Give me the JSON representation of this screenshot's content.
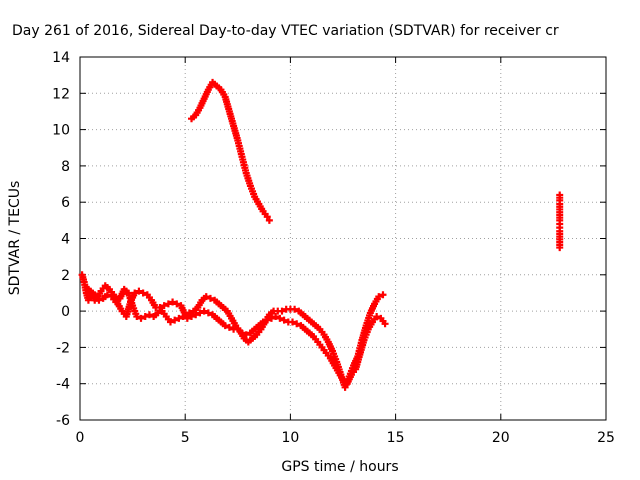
{
  "chart_data": {
    "type": "scatter",
    "title": "Day 261 of 2016, Sidereal Day-to-day VTEC variation (SDTVAR) for receiver cr",
    "xlabel": "GPS time / hours",
    "ylabel": "SDTVAR / TECUs",
    "xlim": [
      0,
      25
    ],
    "ylim": [
      -6,
      14
    ],
    "x_ticks": [
      0,
      5,
      10,
      15,
      20,
      25
    ],
    "y_ticks": [
      -6,
      -4,
      -2,
      0,
      2,
      4,
      6,
      8,
      10,
      12,
      14
    ],
    "x_tick_labels": [
      "0",
      "5",
      "10",
      "15",
      "20",
      "25"
    ],
    "y_tick_labels": [
      "-6",
      "-4",
      "-2",
      "0",
      "2",
      "4",
      "6",
      "8",
      "10",
      "12",
      "14"
    ],
    "grid": true,
    "series_color": "#ff0000",
    "series": [
      {
        "points": [
          [
            0.1,
            2.0
          ],
          [
            0.2,
            1.6
          ],
          [
            0.3,
            1.0
          ],
          [
            0.4,
            0.6
          ],
          [
            0.5,
            0.8
          ],
          [
            0.6,
            1.0
          ],
          [
            0.7,
            0.9
          ],
          [
            0.8,
            0.7
          ],
          [
            1.0,
            1.1
          ],
          [
            1.2,
            1.4
          ],
          [
            1.4,
            1.2
          ],
          [
            1.6,
            0.9
          ],
          [
            1.8,
            0.4
          ],
          [
            2.0,
            0.0
          ],
          [
            2.2,
            -0.3
          ],
          [
            2.4,
            0.5
          ],
          [
            2.6,
            1.0
          ],
          [
            2.8,
            1.1
          ],
          [
            3.0,
            1.0
          ],
          [
            3.2,
            0.9
          ],
          [
            3.4,
            0.6
          ],
          [
            3.6,
            0.2
          ],
          [
            3.8,
            0.2
          ],
          [
            4.0,
            0.3
          ],
          [
            4.2,
            0.4
          ],
          [
            4.4,
            0.5
          ],
          [
            4.6,
            0.4
          ],
          [
            4.8,
            0.3
          ],
          [
            5.0,
            -0.2
          ],
          [
            5.2,
            -0.1
          ],
          [
            5.4,
            0.0
          ],
          [
            5.6,
            0.2
          ],
          [
            5.8,
            0.6
          ],
          [
            6.0,
            0.8
          ],
          [
            6.2,
            0.7
          ],
          [
            6.4,
            0.6
          ],
          [
            6.6,
            0.4
          ],
          [
            6.8,
            0.2
          ],
          [
            7.0,
            0.0
          ],
          [
            7.2,
            -0.4
          ],
          [
            7.4,
            -0.8
          ],
          [
            7.6,
            -1.1
          ],
          [
            7.8,
            -1.5
          ],
          [
            8.0,
            -1.7
          ],
          [
            8.2,
            -1.5
          ],
          [
            8.4,
            -1.3
          ],
          [
            8.6,
            -1.0
          ],
          [
            8.8,
            -0.6
          ],
          [
            9.0,
            -0.2
          ],
          [
            9.2,
            0.0
          ],
          [
            9.4,
            0.0
          ],
          [
            9.6,
            0.0
          ],
          [
            9.8,
            0.1
          ],
          [
            10.0,
            0.1
          ],
          [
            10.2,
            0.1
          ],
          [
            10.4,
            0.0
          ],
          [
            10.6,
            -0.2
          ],
          [
            10.8,
            -0.4
          ],
          [
            11.0,
            -0.6
          ],
          [
            11.2,
            -0.8
          ],
          [
            11.4,
            -1.0
          ],
          [
            11.6,
            -1.3
          ],
          [
            11.8,
            -1.7
          ],
          [
            12.0,
            -2.2
          ],
          [
            12.2,
            -2.8
          ],
          [
            12.4,
            -3.5
          ],
          [
            12.6,
            -4.2
          ],
          [
            12.8,
            -3.6
          ],
          [
            13.0,
            -3.0
          ],
          [
            13.2,
            -2.5
          ],
          [
            13.4,
            -1.6
          ],
          [
            13.6,
            -0.8
          ],
          [
            13.8,
            -0.1
          ],
          [
            14.0,
            0.4
          ],
          [
            14.2,
            0.8
          ],
          [
            14.4,
            0.9
          ]
        ]
      },
      {
        "points": [
          [
            0.3,
            1.3
          ],
          [
            0.5,
            1.1
          ],
          [
            0.7,
            0.6
          ],
          [
            0.9,
            0.6
          ],
          [
            1.1,
            0.7
          ],
          [
            1.3,
            0.9
          ],
          [
            1.5,
            0.8
          ],
          [
            1.7,
            0.5
          ],
          [
            1.9,
            0.7
          ],
          [
            2.1,
            1.2
          ],
          [
            2.3,
            1.0
          ],
          [
            2.5,
            0.3
          ],
          [
            2.7,
            -0.3
          ],
          [
            2.9,
            -0.4
          ],
          [
            3.1,
            -0.3
          ],
          [
            3.3,
            -0.2
          ],
          [
            3.5,
            -0.3
          ],
          [
            3.7,
            -0.1
          ],
          [
            3.9,
            0.0
          ],
          [
            4.1,
            -0.3
          ],
          [
            4.3,
            -0.6
          ],
          [
            4.5,
            -0.5
          ],
          [
            4.7,
            -0.4
          ],
          [
            4.9,
            -0.3
          ],
          [
            5.1,
            -0.4
          ],
          [
            5.3,
            -0.3
          ],
          [
            5.5,
            -0.2
          ],
          [
            5.7,
            -0.1
          ],
          [
            5.9,
            0.0
          ],
          [
            6.1,
            -0.1
          ],
          [
            6.3,
            -0.2
          ],
          [
            6.5,
            -0.4
          ],
          [
            6.7,
            -0.6
          ],
          [
            6.9,
            -0.8
          ],
          [
            7.1,
            -0.9
          ],
          [
            7.3,
            -1.0
          ],
          [
            7.5,
            -1.0
          ],
          [
            7.7,
            -1.2
          ],
          [
            7.9,
            -1.3
          ],
          [
            8.1,
            -1.2
          ],
          [
            8.3,
            -1.0
          ],
          [
            8.5,
            -0.8
          ],
          [
            8.7,
            -0.6
          ],
          [
            8.9,
            -0.5
          ],
          [
            9.1,
            -0.4
          ],
          [
            9.3,
            -0.3
          ],
          [
            9.5,
            -0.4
          ],
          [
            9.7,
            -0.5
          ],
          [
            9.9,
            -0.6
          ],
          [
            10.1,
            -0.6
          ],
          [
            10.3,
            -0.7
          ],
          [
            10.5,
            -0.8
          ],
          [
            10.7,
            -1.0
          ],
          [
            10.9,
            -1.2
          ],
          [
            11.1,
            -1.4
          ],
          [
            11.3,
            -1.7
          ],
          [
            11.5,
            -2.0
          ],
          [
            11.7,
            -2.3
          ],
          [
            11.9,
            -2.6
          ],
          [
            12.1,
            -3.0
          ],
          [
            12.3,
            -3.4
          ],
          [
            12.5,
            -3.8
          ],
          [
            12.7,
            -4.0
          ],
          [
            12.9,
            -3.5
          ],
          [
            13.1,
            -3.2
          ],
          [
            13.3,
            -2.4
          ],
          [
            13.5,
            -1.6
          ],
          [
            13.7,
            -1.0
          ],
          [
            13.9,
            -0.6
          ],
          [
            14.1,
            -0.3
          ],
          [
            14.3,
            -0.4
          ],
          [
            14.5,
            -0.7
          ]
        ]
      },
      {
        "points": [
          [
            5.3,
            10.6
          ],
          [
            5.5,
            10.8
          ],
          [
            5.7,
            11.2
          ],
          [
            5.9,
            11.7
          ],
          [
            6.1,
            12.2
          ],
          [
            6.3,
            12.6
          ],
          [
            6.5,
            12.4
          ],
          [
            6.7,
            12.2
          ],
          [
            6.9,
            11.8
          ],
          [
            7.1,
            11.0
          ],
          [
            7.3,
            10.2
          ],
          [
            7.5,
            9.4
          ],
          [
            7.7,
            8.5
          ],
          [
            7.9,
            7.6
          ],
          [
            8.1,
            6.9
          ],
          [
            8.3,
            6.3
          ],
          [
            8.5,
            5.9
          ],
          [
            8.7,
            5.5
          ],
          [
            8.9,
            5.2
          ],
          [
            9.0,
            5.0
          ]
        ]
      },
      {
        "points": [
          [
            22.8,
            6.4
          ],
          [
            22.8,
            6.1
          ],
          [
            22.8,
            5.9
          ],
          [
            22.8,
            5.6
          ],
          [
            22.8,
            5.3
          ],
          [
            22.8,
            5.0
          ],
          [
            22.8,
            4.8
          ],
          [
            22.8,
            4.6
          ],
          [
            22.8,
            4.4
          ],
          [
            22.8,
            4.1
          ],
          [
            22.8,
            3.8
          ],
          [
            22.8,
            3.5
          ]
        ]
      }
    ]
  }
}
